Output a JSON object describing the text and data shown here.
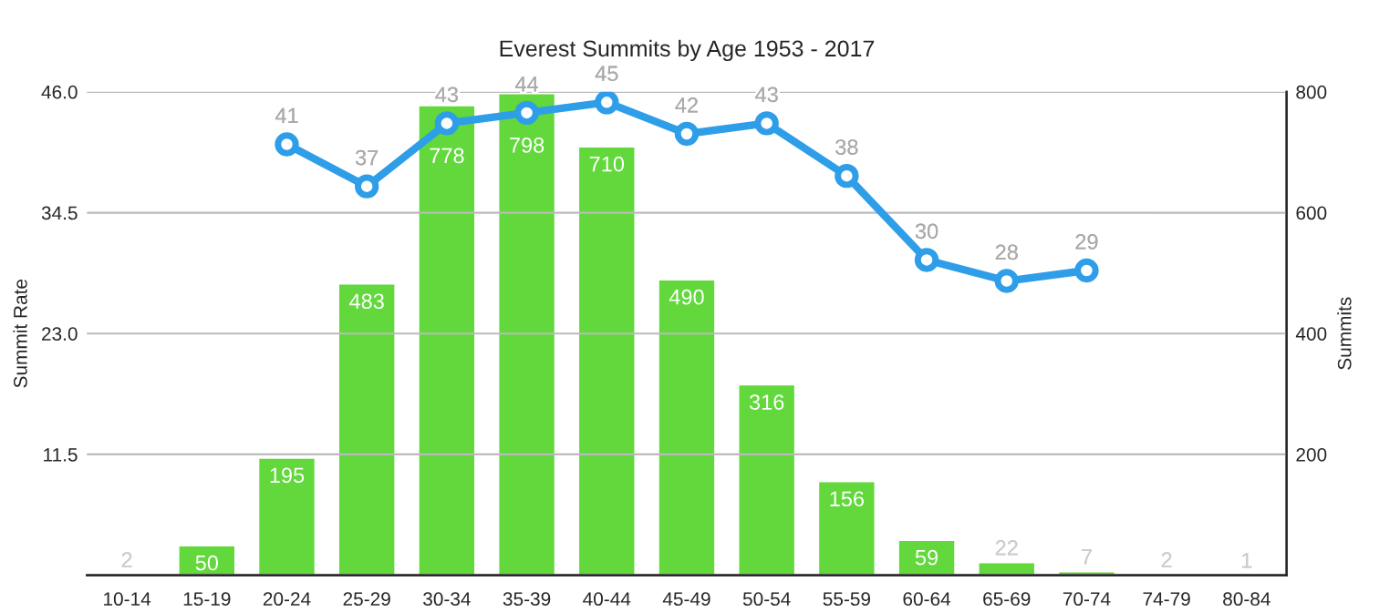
{
  "chart_data": {
    "type": "bar",
    "title": "Everest Summits by Age 1953 - 2017",
    "ylabel": "Summit Rate",
    "y2label": "Summits",
    "categories": [
      "10-14",
      "15-19",
      "20-24",
      "25-29",
      "30-34",
      "35-39",
      "40-44",
      "45-49",
      "50-54",
      "55-59",
      "60-64",
      "65-69",
      "70-74",
      "74-79",
      "80-84"
    ],
    "series": [
      {
        "axis": "y2",
        "color": "#62d83c",
        "values": [
          2,
          50,
          195,
          483,
          778,
          798,
          710,
          490,
          316,
          156,
          59,
          22,
          7,
          2,
          1
        ]
      },
      {
        "type": "line",
        "axis": "y",
        "color": "#2f9ee8",
        "marker": "circle",
        "values": [
          null,
          null,
          41,
          37,
          43,
          44,
          45,
          42,
          43,
          38,
          30,
          28,
          29,
          null,
          null
        ]
      }
    ],
    "ylim": [
      0,
      46
    ],
    "yticks": [
      {
        "value": 11.5,
        "label": "11.5"
      },
      {
        "value": 23,
        "label": "23.0"
      },
      {
        "value": 34.5,
        "label": "34.5"
      },
      {
        "value": 46,
        "label": "46.0"
      }
    ],
    "y2lim": [
      0,
      800
    ],
    "y2ticks": [
      200,
      400,
      600,
      800
    ],
    "grid": "y",
    "data_labels": true,
    "legend": false
  }
}
